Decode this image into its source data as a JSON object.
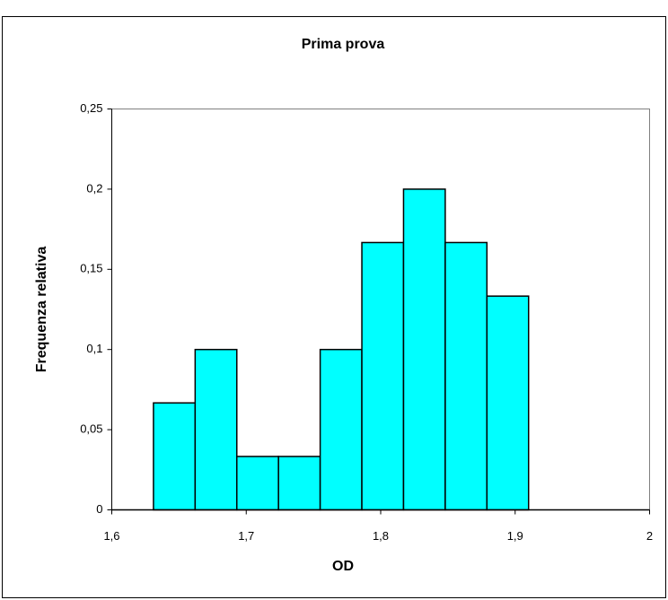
{
  "chart_data": {
    "type": "histogram",
    "title": "Prima prova",
    "x_label": "OD",
    "y_label": "Frequenza relativa",
    "bins": [
      1.631,
      1.662,
      1.693,
      1.724,
      1.755,
      1.786,
      1.817,
      1.848,
      1.879,
      1.91
    ],
    "values": [
      0.0667,
      0.1,
      0.0333,
      0.0333,
      0.1,
      0.1667,
      0.2,
      0.1667,
      0.1333
    ],
    "color": "#00ffff",
    "xlim": [
      1.6,
      2
    ],
    "xticks": [
      {
        "value": 1.6,
        "label": "1,6"
      },
      {
        "value": 1.7,
        "label": "1,7"
      },
      {
        "value": 1.8,
        "label": "1,8"
      },
      {
        "value": 1.9,
        "label": "1,9"
      },
      2
    ],
    "ylim": [
      0,
      0.25
    ],
    "yticks": [
      0,
      {
        "value": 0.05,
        "label": "0,05"
      },
      {
        "value": 0.1,
        "label": "0,1"
      },
      {
        "value": 0.15,
        "label": "0,15"
      },
      {
        "value": 0.2,
        "label": "0,2"
      },
      {
        "value": 0.25,
        "label": "0,25"
      }
    ],
    "grid": false
  }
}
